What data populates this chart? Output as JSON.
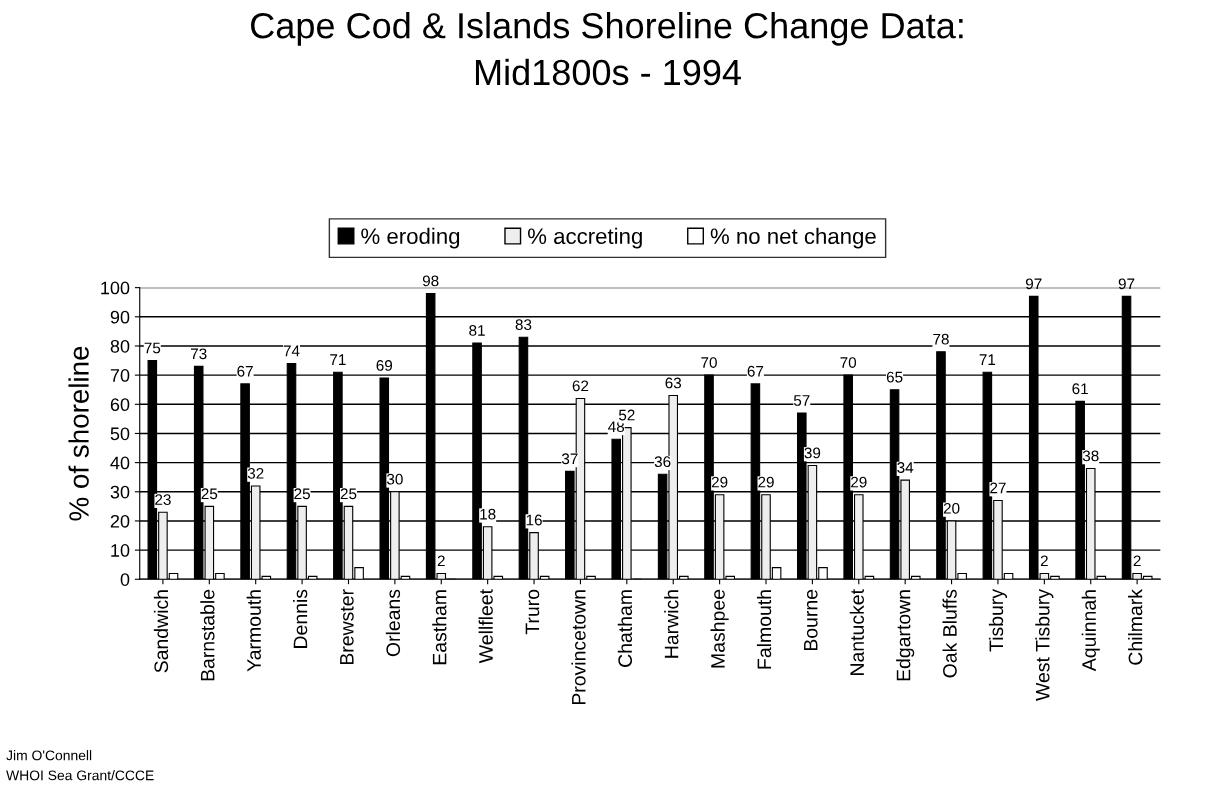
{
  "chart_data": {
    "type": "bar",
    "title": "Cape Cod & Islands Shoreline Change Data:\nMid1800s - 1994",
    "ylabel": "% of shoreline",
    "categories": [
      "Sandwich",
      "Barnstable",
      "Yarmouth",
      "Dennis",
      "Brewster",
      "Orleans",
      "Eastham",
      "Wellfleet",
      "Truro",
      "Provincetown",
      "Chatham",
      "Harwich",
      "Mashpee",
      "Falmouth",
      "Bourne",
      "Nantucket",
      "Edgartown",
      "Oak Bluffs",
      "Tisbury",
      "West Tisbury",
      "Aquinnah",
      "Chilmark"
    ],
    "series": [
      {
        "name": "% eroding",
        "color": "#000000",
        "values": [
          75,
          73,
          67,
          74,
          71,
          69,
          98,
          81,
          83,
          37,
          48,
          36,
          70,
          67,
          57,
          70,
          65,
          78,
          71,
          97,
          61,
          97
        ],
        "value_labels": [
          "75",
          "73",
          "67",
          "74",
          "71",
          "69",
          "98",
          "81",
          "83",
          "37",
          "48",
          "36",
          "70",
          "67",
          "57",
          "70",
          "65",
          "78",
          "71",
          "97",
          "61",
          "97"
        ]
      },
      {
        "name": "% accreting",
        "color": "#eeeeee",
        "values": [
          23,
          25,
          32,
          25,
          25,
          30,
          2,
          18,
          16,
          62,
          52,
          63,
          29,
          29,
          39,
          29,
          34,
          20,
          27,
          2,
          38,
          2
        ],
        "value_labels": [
          "23",
          "25",
          "32",
          "25",
          "25",
          "30",
          "2",
          "18",
          "16",
          "62",
          "52",
          "63",
          "29",
          "29",
          "39",
          "29",
          "34",
          "20",
          "27",
          "2",
          "38",
          "2"
        ]
      },
      {
        "name": "% no net change",
        "color": "#ffffff",
        "values": [
          2,
          2,
          1,
          1,
          4,
          1,
          0,
          1,
          1,
          1,
          0,
          1,
          1,
          4,
          4,
          1,
          1,
          2,
          2,
          1,
          1,
          1
        ]
      }
    ],
    "ylim": [
      0,
      100
    ],
    "yticks": [
      0,
      10,
      20,
      30,
      40,
      50,
      60,
      70,
      80,
      90,
      100
    ],
    "grid": "y",
    "legend": "top",
    "annotations": [
      "Jim O'Connell",
      "WHOI Sea Grant/CCCE"
    ]
  }
}
